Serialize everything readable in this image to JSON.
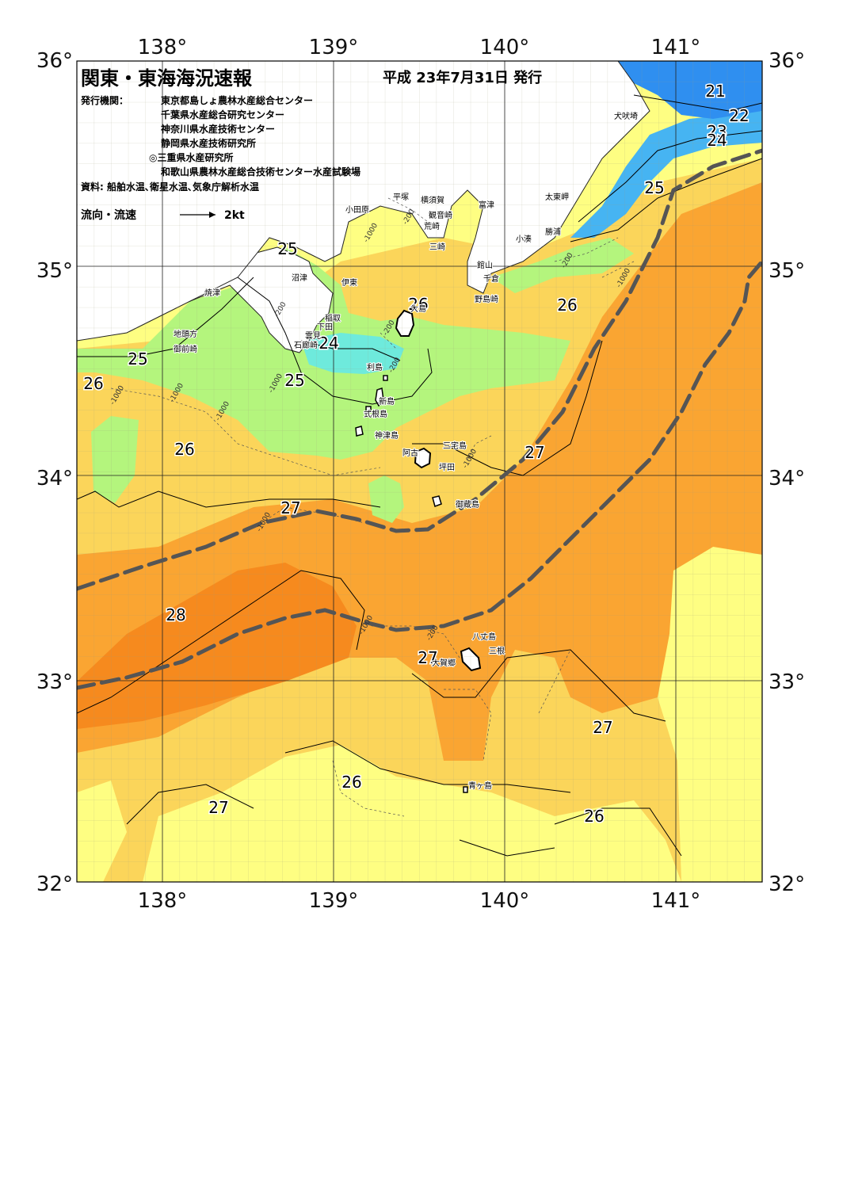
{
  "title": "関東・東海海況速報",
  "issue_date": "平成 23年7月31日 発行",
  "publishers_label": "発行機関：",
  "publishers": [
    "東京都島しょ農林水産総合センター",
    "千葉県水産総合研究センター",
    "神奈川県水産技術センター",
    "静岡県水産技術研究所",
    "◎三重県水産研究所",
    "和歌山県農林水産総合技術センター水産試験場"
  ],
  "data_source": "資料: 船舶水温､衛星水温､気象庁解析水温",
  "current_legend": {
    "label": "流向・流速",
    "speed": "2kt"
  },
  "longitude_labels": [
    "138°",
    "139°",
    "140°",
    "141°"
  ],
  "latitude_labels": [
    "36°",
    "35°",
    "34°",
    "33°",
    "32°"
  ],
  "isotherm_labels": [
    "21",
    "22",
    "23",
    "24",
    "25",
    "25",
    "25",
    "24",
    "25",
    "26",
    "26",
    "26",
    "26",
    "27",
    "27",
    "28",
    "27",
    "27",
    "26",
    "27",
    "26"
  ],
  "depth_labels": [
    "-200",
    "-1000",
    "-200",
    "-1000",
    "-200",
    "-1000",
    "-200",
    "-1000",
    "-1000",
    "-1000",
    "-200",
    "-1000",
    "-1000",
    "-1000",
    "-200"
  ],
  "place_names": [
    "犬吠埼",
    "太東岬",
    "勝浦",
    "小湊",
    "館山",
    "千倉",
    "野島崎",
    "富津",
    "観音崎",
    "横須賀",
    "平塚",
    "荒崎",
    "三崎",
    "小田原",
    "沼津",
    "伊東",
    "焼津",
    "稲取",
    "下田",
    "雲見",
    "石廊崎",
    "地頭方",
    "御前崎",
    "大島",
    "利島",
    "新島",
    "式根島",
    "神津島",
    "三宅島",
    "坪田",
    "阿古",
    "御蔵島",
    "八丈島",
    "三根",
    "大賀郷",
    "青ヶ島"
  ],
  "colors": {
    "blue": "#2f8ff0",
    "blue_light": "#46b4f2",
    "cyan": "#6eeadc",
    "green": "#b4f57d",
    "yellow": "#fefe82",
    "light_orange": "#fbd55a",
    "orange": "#faa532",
    "deep_orange": "#f68a1e",
    "kuroshio_axis": "#555555"
  }
}
